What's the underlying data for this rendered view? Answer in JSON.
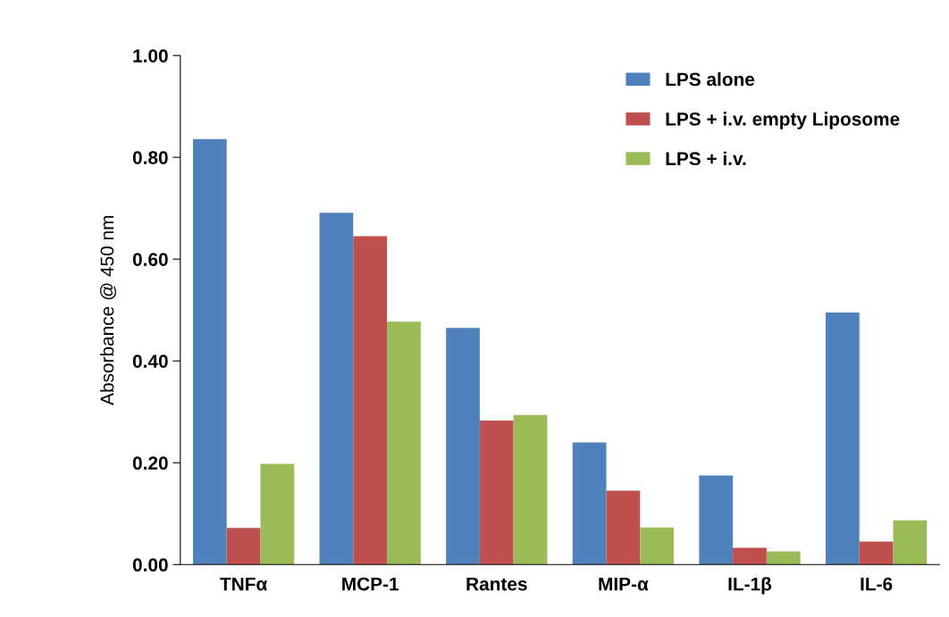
{
  "chart_data": {
    "type": "bar",
    "ylabel": "Absorbance @ 450 nm",
    "categories": [
      "TNFα",
      "MCP-1",
      "Rantes",
      "MIP-α",
      "IL-1β",
      "IL-6"
    ],
    "series": [
      {
        "name": "LPS alone",
        "color": "#4f81bd",
        "values": [
          0.836,
          0.691,
          0.465,
          0.24,
          0.175,
          0.495
        ]
      },
      {
        "name": "LPS + i.v. empty Liposome",
        "color": "#c0504d",
        "values": [
          0.072,
          0.645,
          0.283,
          0.145,
          0.033,
          0.045
        ]
      },
      {
        "name": "LPS + i.v.",
        "color": "#9bbb59",
        "values": [
          0.198,
          0.477,
          0.294,
          0.073,
          0.026,
          0.087
        ]
      }
    ],
    "ylim": [
      0,
      1.0
    ],
    "yticks": [
      {
        "value": 0,
        "label": "0.00"
      },
      {
        "value": 0.2,
        "label": "0.20"
      },
      {
        "value": 0.4,
        "label": "0.40"
      },
      {
        "value": 0.6,
        "label": "0.60"
      },
      {
        "value": 0.8,
        "label": "0.80"
      },
      {
        "value": 1.0,
        "label": "1.00"
      }
    ],
    "legend": "top right",
    "grid": false
  }
}
